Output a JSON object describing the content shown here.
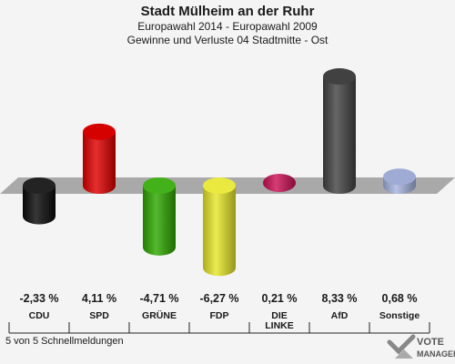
{
  "header": {
    "title": "Stadt Mülheim an der Ruhr",
    "subtitle1": "Europawahl 2014 - Europawahl 2009",
    "subtitle2": "Gewinne und Verluste 04 Stadtmitte - Ost"
  },
  "footer": {
    "note": "5 von 5 Schnellmeldungen",
    "logo_line1": "VOTE",
    "logo_line2": "MANAGER"
  },
  "chart_data": {
    "type": "bar",
    "categories": [
      "CDU",
      "SPD",
      "GRÜNE",
      "FDP",
      "DIE LINKE",
      "AfD",
      "Sonstige"
    ],
    "category_lines": [
      [
        "CDU"
      ],
      [
        "SPD"
      ],
      [
        "GRÜNE"
      ],
      [
        "FDP"
      ],
      [
        "DIE",
        "LINKE"
      ],
      [
        "AfD"
      ],
      [
        "Sonstige"
      ]
    ],
    "values": [
      -2.33,
      4.11,
      -4.71,
      -6.27,
      0.21,
      8.33,
      0.68
    ],
    "value_labels": [
      "-2,33 %",
      "4,11 %",
      "-4,71 %",
      "-6,27 %",
      "0,21 %",
      "8,33 %",
      "0,68 %"
    ],
    "colors": [
      "#0a0a0a",
      "#e00000",
      "#2ea800",
      "#e6e62a",
      "#cc1155",
      "#444444",
      "#a8b4e0"
    ],
    "ylim": [
      -8,
      10
    ]
  }
}
